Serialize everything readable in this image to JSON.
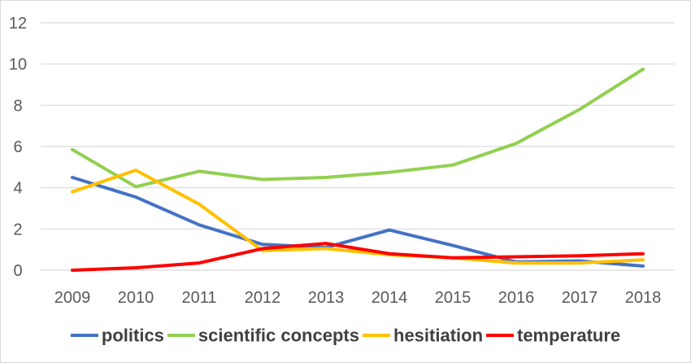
{
  "chart_data": {
    "type": "line",
    "x": [
      "2009",
      "2010",
      "2011",
      "2012",
      "2013",
      "2014",
      "2015",
      "2016",
      "2017",
      "2018"
    ],
    "ylim": [
      0,
      12
    ],
    "yticks": [
      "0",
      "2",
      "4",
      "6",
      "8",
      "10",
      "12"
    ],
    "grid": true,
    "legend_position": "bottom",
    "series": [
      {
        "name": "politics",
        "color": "#4472C4",
        "values": [
          4.5,
          3.55,
          2.2,
          1.25,
          1.1,
          1.95,
          1.2,
          0.4,
          0.45,
          0.2
        ]
      },
      {
        "name": "scientific concepts",
        "color": "#92D050",
        "values": [
          5.85,
          4.05,
          4.8,
          4.4,
          4.5,
          4.75,
          5.1,
          6.15,
          7.8,
          9.75
        ]
      },
      {
        "name": "hesitiation",
        "color": "#FFC000",
        "values": [
          3.8,
          4.85,
          3.2,
          0.95,
          1.05,
          0.75,
          0.6,
          0.35,
          0.35,
          0.5
        ]
      },
      {
        "name": "temperature",
        "color": "#FF0000",
        "values": [
          0.0,
          0.12,
          0.35,
          1.05,
          1.3,
          0.8,
          0.6,
          0.65,
          0.7,
          0.8
        ]
      }
    ]
  }
}
